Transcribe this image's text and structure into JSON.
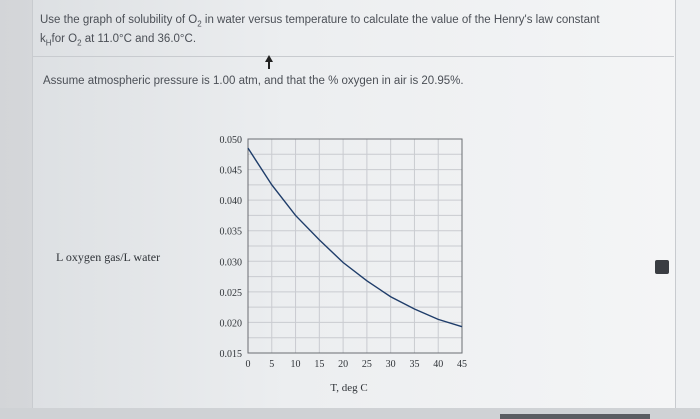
{
  "question": {
    "line1_part1": "Use the graph of solubility of O",
    "line1_sub": "2",
    "line1_part2": " in water versus temperature to calculate the value of the Henry's law constant",
    "line2_k": "k",
    "line2_k_sub": "H",
    "line2_part1": "for O",
    "line2_sub": "2",
    "line2_part2": " at 11.0°C and 36.0°C.",
    "assumption": "Assume atmospheric pressure is 1.00 atm, and that the % oxygen in air is 20.95%."
  },
  "chart_data": {
    "type": "line",
    "ylabel": "L oxygen gas/L water",
    "xlabel": "T, deg C",
    "x_ticks": [
      "0",
      "5",
      "10",
      "15",
      "20",
      "25",
      "30",
      "35",
      "40",
      "45"
    ],
    "y_ticks": [
      "0.050",
      "0.045",
      "0.040",
      "0.035",
      "0.030",
      "0.025",
      "0.020",
      "0.015"
    ],
    "xlim": [
      0,
      45
    ],
    "ylim": [
      0.015,
      0.05
    ],
    "grid": true,
    "series": [
      {
        "x": [
          0,
          5,
          10,
          15,
          20,
          25,
          30,
          35,
          40,
          45
        ],
        "y": [
          0.0485,
          0.0425,
          0.0375,
          0.0335,
          0.0298,
          0.0268,
          0.0242,
          0.0222,
          0.0205,
          0.0193
        ],
        "color": "#1f3d6a"
      }
    ]
  },
  "colors": {
    "line": "#1f3d6a",
    "text": "#4b4f56"
  }
}
